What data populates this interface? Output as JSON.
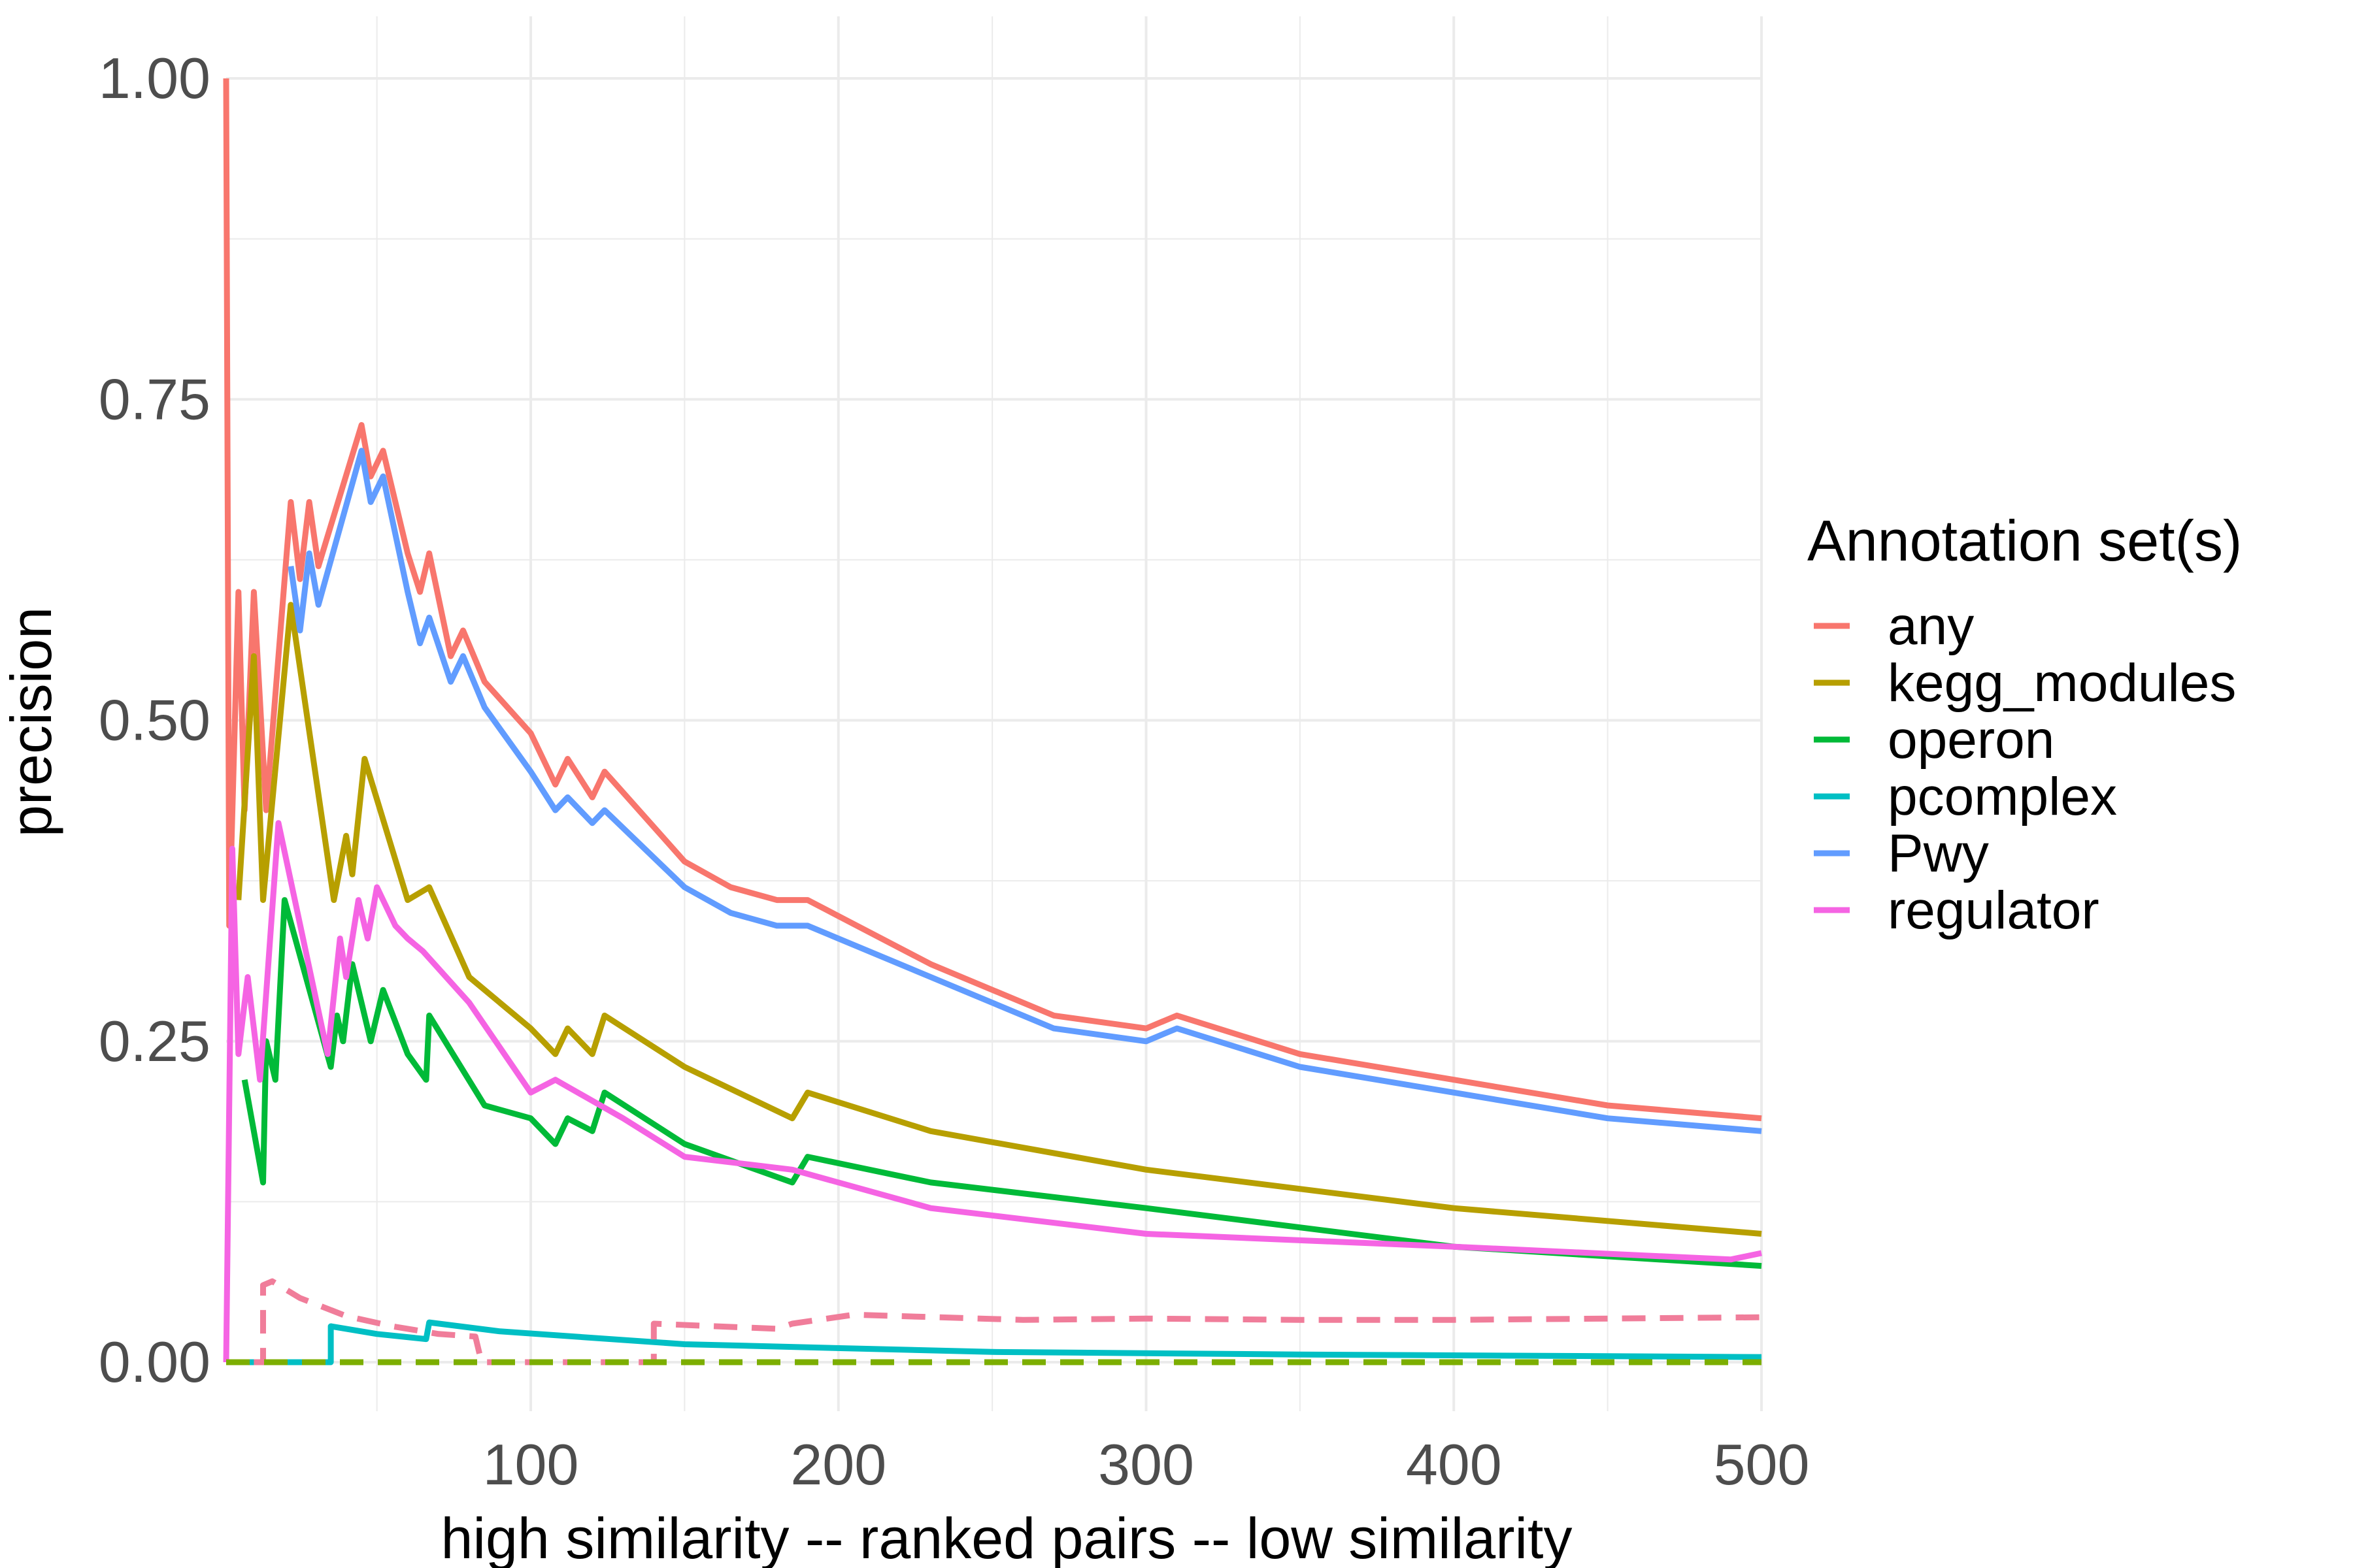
{
  "chart_data": {
    "type": "line",
    "title": "",
    "xlabel": "high similarity -- ranked pairs -- low similarity",
    "ylabel": "precision",
    "xlim": [
      1,
      500
    ],
    "ylim": [
      0,
      1
    ],
    "x_ticks": [
      100,
      200,
      300,
      400,
      500
    ],
    "y_ticks": [
      0,
      0.25,
      0.5,
      0.75,
      1
    ],
    "y_tick_labels": [
      "0.00",
      "0.25",
      "0.50",
      "0.75",
      "1.00"
    ],
    "grid": true,
    "legend": {
      "title": "Annotation set(s)",
      "position": "right",
      "entries": [
        "any",
        "kegg_modules",
        "operon",
        "pcomplex",
        "Pwy",
        "regulator"
      ]
    },
    "series": [
      {
        "name": "any",
        "color": "#F8766D",
        "dash": "solid",
        "points": [
          [
            1,
            1.0
          ],
          [
            2,
            0.34
          ],
          [
            5,
            0.6
          ],
          [
            7,
            0.43
          ],
          [
            10,
            0.6
          ],
          [
            14,
            0.43
          ],
          [
            22,
            0.67
          ],
          [
            25,
            0.61
          ],
          [
            28,
            0.67
          ],
          [
            31,
            0.62
          ],
          [
            45,
            0.73
          ],
          [
            48,
            0.69
          ],
          [
            52,
            0.71
          ],
          [
            60,
            0.63
          ],
          [
            64,
            0.6
          ],
          [
            67,
            0.63
          ],
          [
            74,
            0.55
          ],
          [
            78,
            0.57
          ],
          [
            85,
            0.53
          ],
          [
            100,
            0.49
          ],
          [
            108,
            0.45
          ],
          [
            112,
            0.47
          ],
          [
            120,
            0.44
          ],
          [
            124,
            0.46
          ],
          [
            150,
            0.39
          ],
          [
            165,
            0.37
          ],
          [
            180,
            0.36
          ],
          [
            190,
            0.36
          ],
          [
            230,
            0.31
          ],
          [
            270,
            0.27
          ],
          [
            300,
            0.26
          ],
          [
            310,
            0.27
          ],
          [
            350,
            0.24
          ],
          [
            400,
            0.22
          ],
          [
            450,
            0.2
          ],
          [
            500,
            0.19
          ]
        ]
      },
      {
        "name": "kegg_modules",
        "color": "#B79F00",
        "dash": "solid",
        "points": [
          [
            5,
            0.36
          ],
          [
            10,
            0.55
          ],
          [
            13,
            0.36
          ],
          [
            22,
            0.59
          ],
          [
            36,
            0.36
          ],
          [
            40,
            0.41
          ],
          [
            42,
            0.38
          ],
          [
            46,
            0.47
          ],
          [
            60,
            0.36
          ],
          [
            67,
            0.37
          ],
          [
            80,
            0.3
          ],
          [
            100,
            0.26
          ],
          [
            108,
            0.24
          ],
          [
            112,
            0.26
          ],
          [
            120,
            0.24
          ],
          [
            124,
            0.27
          ],
          [
            150,
            0.23
          ],
          [
            185,
            0.19
          ],
          [
            190,
            0.21
          ],
          [
            230,
            0.18
          ],
          [
            300,
            0.15
          ],
          [
            400,
            0.12
          ],
          [
            500,
            0.1
          ]
        ]
      },
      {
        "name": "operon",
        "color": "#00BA38",
        "dash": "solid",
        "points": [
          [
            7,
            0.22
          ],
          [
            13,
            0.14
          ],
          [
            14,
            0.25
          ],
          [
            17,
            0.22
          ],
          [
            20,
            0.36
          ],
          [
            35,
            0.23
          ],
          [
            37,
            0.27
          ],
          [
            39,
            0.25
          ],
          [
            42,
            0.31
          ],
          [
            48,
            0.25
          ],
          [
            52,
            0.29
          ],
          [
            60,
            0.24
          ],
          [
            66,
            0.22
          ],
          [
            67,
            0.27
          ],
          [
            85,
            0.2
          ],
          [
            100,
            0.19
          ],
          [
            108,
            0.17
          ],
          [
            112,
            0.19
          ],
          [
            120,
            0.18
          ],
          [
            124,
            0.21
          ],
          [
            150,
            0.17
          ],
          [
            185,
            0.14
          ],
          [
            190,
            0.16
          ],
          [
            230,
            0.14
          ],
          [
            300,
            0.12
          ],
          [
            400,
            0.09
          ],
          [
            500,
            0.075
          ]
        ]
      },
      {
        "name": "pcomplex",
        "color": "#00BFC4",
        "dash": "solid",
        "points": [
          [
            1,
            0.0
          ],
          [
            35,
            0.0
          ],
          [
            35,
            0.028
          ],
          [
            50,
            0.022
          ],
          [
            66,
            0.018
          ],
          [
            67,
            0.031
          ],
          [
            90,
            0.024
          ],
          [
            150,
            0.014
          ],
          [
            250,
            0.008
          ],
          [
            350,
            0.006
          ],
          [
            500,
            0.004
          ]
        ]
      },
      {
        "name": "Pwy",
        "color": "#619CFF",
        "dash": "solid",
        "points": [
          [
            22,
            0.62
          ],
          [
            25,
            0.57
          ],
          [
            28,
            0.63
          ],
          [
            31,
            0.59
          ],
          [
            45,
            0.71
          ],
          [
            48,
            0.67
          ],
          [
            52,
            0.69
          ],
          [
            60,
            0.6
          ],
          [
            64,
            0.56
          ],
          [
            67,
            0.58
          ],
          [
            74,
            0.53
          ],
          [
            78,
            0.55
          ],
          [
            85,
            0.51
          ],
          [
            100,
            0.46
          ],
          [
            108,
            0.43
          ],
          [
            112,
            0.44
          ],
          [
            120,
            0.42
          ],
          [
            124,
            0.43
          ],
          [
            150,
            0.37
          ],
          [
            165,
            0.35
          ],
          [
            180,
            0.34
          ],
          [
            190,
            0.34
          ],
          [
            230,
            0.3
          ],
          [
            270,
            0.26
          ],
          [
            300,
            0.25
          ],
          [
            310,
            0.26
          ],
          [
            350,
            0.23
          ],
          [
            400,
            0.21
          ],
          [
            450,
            0.19
          ],
          [
            500,
            0.18
          ]
        ]
      },
      {
        "name": "regulator",
        "color": "#F564E3",
        "dash": "solid",
        "points": [
          [
            1,
            0.0
          ],
          [
            3,
            0.4
          ],
          [
            5,
            0.24
          ],
          [
            8,
            0.3
          ],
          [
            12,
            0.22
          ],
          [
            18,
            0.42
          ],
          [
            34,
            0.24
          ],
          [
            38,
            0.33
          ],
          [
            40,
            0.3
          ],
          [
            44,
            0.36
          ],
          [
            47,
            0.33
          ],
          [
            50,
            0.37
          ],
          [
            56,
            0.34
          ],
          [
            60,
            0.33
          ],
          [
            65,
            0.32
          ],
          [
            80,
            0.28
          ],
          [
            100,
            0.21
          ],
          [
            108,
            0.22
          ],
          [
            130,
            0.19
          ],
          [
            150,
            0.16
          ],
          [
            185,
            0.15
          ],
          [
            230,
            0.12
          ],
          [
            300,
            0.1
          ],
          [
            400,
            0.09
          ],
          [
            490,
            0.08
          ],
          [
            500,
            0.085
          ]
        ]
      },
      {
        "name": "",
        "color": "#F07D9A",
        "dash": "dashed",
        "points": [
          [
            10,
            0.0
          ],
          [
            13,
            0.0
          ],
          [
            13,
            0.06
          ],
          [
            16,
            0.063
          ],
          [
            25,
            0.05
          ],
          [
            40,
            0.036
          ],
          [
            55,
            0.028
          ],
          [
            70,
            0.022
          ],
          [
            82,
            0.02
          ],
          [
            84,
            0.0
          ],
          [
            140,
            0.0
          ],
          [
            140,
            0.03
          ],
          [
            160,
            0.028
          ],
          [
            180,
            0.026
          ],
          [
            185,
            0.03
          ],
          [
            205,
            0.037
          ],
          [
            260,
            0.033
          ],
          [
            300,
            0.034
          ],
          [
            350,
            0.033
          ],
          [
            400,
            0.033
          ],
          [
            450,
            0.034
          ],
          [
            500,
            0.035
          ]
        ]
      },
      {
        "name": "",
        "color": "#7CAE00",
        "dash": "dashed",
        "points": [
          [
            1,
            0.0
          ],
          [
            500,
            0.0
          ]
        ]
      }
    ]
  }
}
